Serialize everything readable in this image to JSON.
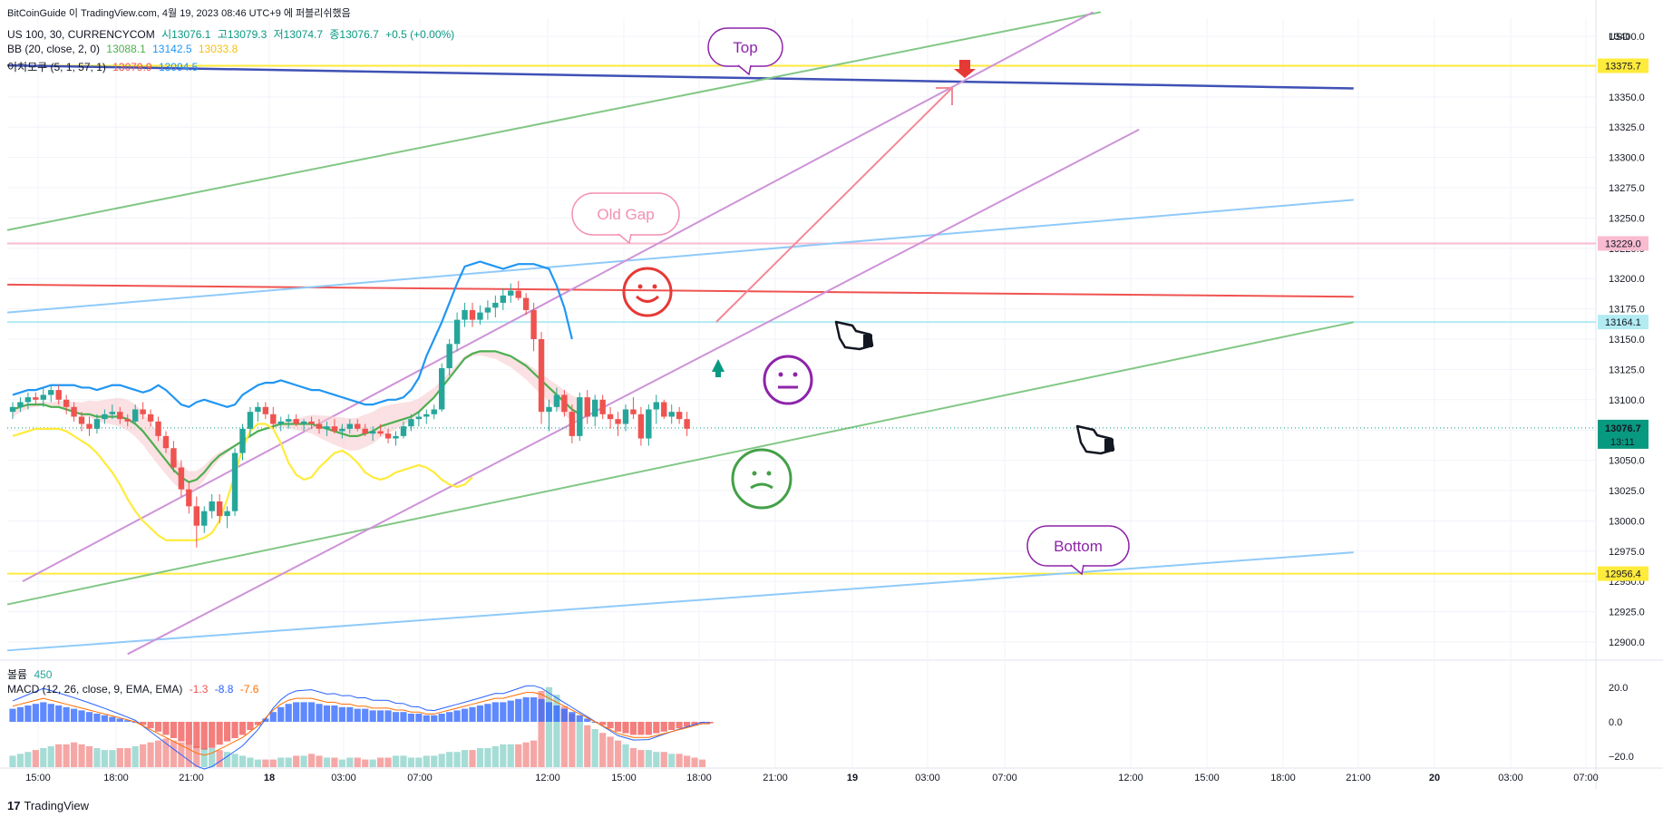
{
  "header": {
    "publisher": "BitCoinGuide 이 TradingView.com, 4월 19, 2023 08:46 UTC+9 에 퍼블리쉬했음",
    "symbol_line": "US 100, 30, CURRENCYCOM",
    "ohlc": {
      "open": "시13076.1",
      "high": "고13079.3",
      "low": "저13074.7",
      "close": "종13076.7",
      "change": "+0.5 (+0.00%)"
    },
    "bb_label": "BB (20, close, 2, 0)",
    "bb_values": {
      "basis": "13088.1",
      "upper": "13142.5",
      "lower": "13033.8"
    },
    "ichimoku_label": "이치모쿠 (5, 1, 57, 1)",
    "ichimoku_values": {
      "a": "13079.9",
      "b": "13094.5"
    },
    "volume_label": "볼륨",
    "volume_value": "450",
    "macd_label": "MACD (12, 26, close, 9, EMA, EMA)",
    "macd_values": {
      "hist": "-1.3",
      "macd": "-8.8",
      "signal": "-7.6"
    }
  },
  "footer": {
    "brand": "TradingView",
    "logo_glyph": "17"
  },
  "colors": {
    "up": "#26a69a",
    "down": "#ef5350",
    "bb_upper": "#2196f3",
    "bb_basis": "#4caf50",
    "bb_lower": "#ffeb3b",
    "level_yellow": "#ffeb3b",
    "level_pink": "#f8bbd0",
    "level_cyan": "#b2ebf2",
    "purple": "#ce93d8",
    "green_line": "#81c784",
    "blue_line": "#90caf9",
    "red_line": "#ef5350",
    "navy_line": "#3f51b5"
  },
  "annotations": {
    "top": "Top",
    "old_gap": "Old Gap",
    "bottom": "Bottom"
  },
  "chart_data": {
    "type": "candlestick",
    "currency": "USD",
    "ylim": [
      12885,
      13415
    ],
    "price_ticks": [
      12900,
      12925,
      12950,
      12975,
      13000,
      13025,
      13050,
      13075,
      13100,
      13125,
      13150,
      13175,
      13200,
      13225,
      13250,
      13275,
      13300,
      13325,
      13350,
      13375,
      13400
    ],
    "price_tick_labels": [
      "12900.0",
      "12925.0",
      "12950.0",
      "12975.0",
      "13000.0",
      "13025.0",
      "13050.0",
      "13075.0",
      "13100.0",
      "13125.0",
      "13150.0",
      "13175.0",
      "13200.0",
      "13225.0",
      "13250.0",
      "13275.0",
      "13300.0",
      "13325.0",
      "13350.0",
      "13375.0",
      "13400.0"
    ],
    "price_labels": [
      {
        "text": "13375.7",
        "value": 13375.7,
        "color": "#ffeb3b",
        "text_color": "#131722"
      },
      {
        "text": "13229.0",
        "value": 13229.0,
        "color": "#f8bbd0",
        "text_color": "#131722"
      },
      {
        "text": "13164.1",
        "value": 13164.1,
        "color": "#b2ebf2",
        "text_color": "#131722"
      },
      {
        "text": "12956.4",
        "value": 12956.4,
        "color": "#ffeb3b",
        "text_color": "#131722"
      }
    ],
    "last_price": {
      "text": "13076.7",
      "countdown": "13:11",
      "value": 13076.7
    },
    "x_ticks": [
      "15:00",
      "18:00",
      "21:00",
      "18",
      "03:00",
      "07:00",
      "12:00",
      "15:00",
      "18:00",
      "21:00",
      "19",
      "03:00",
      "07:00",
      "12:00",
      "15:00",
      "18:00",
      "21:00",
      "20",
      "03:00",
      "07:00"
    ],
    "x_ticks_bold": [
      "18",
      "19",
      "20"
    ],
    "macd_ticks": [
      "20.0",
      "0.0",
      "−20.0"
    ],
    "candles": [
      [
        13090,
        13098,
        13084,
        13094
      ],
      [
        13094,
        13102,
        13090,
        13098
      ],
      [
        13098,
        13106,
        13092,
        13102
      ],
      [
        13102,
        13106,
        13096,
        13100
      ],
      [
        13100,
        13110,
        13094,
        13104
      ],
      [
        13104,
        13112,
        13098,
        13108
      ],
      [
        13108,
        13112,
        13096,
        13100
      ],
      [
        13100,
        13104,
        13088,
        13094
      ],
      [
        13094,
        13098,
        13082,
        13086
      ],
      [
        13086,
        13090,
        13074,
        13080
      ],
      [
        13080,
        13086,
        13070,
        13076
      ],
      [
        13076,
        13088,
        13072,
        13084
      ],
      [
        13084,
        13092,
        13080,
        13088
      ],
      [
        13088,
        13096,
        13084,
        13090
      ],
      [
        13090,
        13094,
        13080,
        13084
      ],
      [
        13084,
        13088,
        13078,
        13082
      ],
      [
        13082,
        13096,
        13080,
        13092
      ],
      [
        13092,
        13098,
        13084,
        13088
      ],
      [
        13088,
        13092,
        13078,
        13082
      ],
      [
        13082,
        13086,
        13066,
        13070
      ],
      [
        13070,
        13074,
        13056,
        13060
      ],
      [
        13060,
        13066,
        13040,
        13044
      ],
      [
        13044,
        13050,
        13020,
        13026
      ],
      [
        13026,
        13032,
        13006,
        13012
      ],
      [
        13012,
        13020,
        12978,
        12996
      ],
      [
        12996,
        13012,
        12990,
        13008
      ],
      [
        13008,
        13022,
        13002,
        13016
      ],
      [
        13016,
        13022,
        12998,
        13004
      ],
      [
        13004,
        13012,
        12994,
        13008
      ],
      [
        13008,
        13060,
        13004,
        13056
      ],
      [
        13056,
        13080,
        13050,
        13076
      ],
      [
        13076,
        13094,
        13070,
        13090
      ],
      [
        13090,
        13098,
        13082,
        13094
      ],
      [
        13094,
        13098,
        13084,
        13088
      ],
      [
        13088,
        13094,
        13076,
        13080
      ],
      [
        13080,
        13086,
        13074,
        13082
      ],
      [
        13082,
        13088,
        13076,
        13084
      ],
      [
        13084,
        13088,
        13078,
        13080
      ],
      [
        13080,
        13084,
        13074,
        13082
      ],
      [
        13082,
        13086,
        13076,
        13080
      ],
      [
        13080,
        13084,
        13072,
        13076
      ],
      [
        13076,
        13082,
        13070,
        13078
      ],
      [
        13078,
        13084,
        13072,
        13074
      ],
      [
        13074,
        13080,
        13068,
        13076
      ],
      [
        13076,
        13084,
        13072,
        13080
      ],
      [
        13080,
        13084,
        13074,
        13076
      ],
      [
        13076,
        13080,
        13070,
        13072
      ],
      [
        13072,
        13078,
        13066,
        13074
      ],
      [
        13074,
        13080,
        13070,
        13072
      ],
      [
        13072,
        13076,
        13064,
        13068
      ],
      [
        13068,
        13074,
        13062,
        13070
      ],
      [
        13070,
        13082,
        13068,
        13078
      ],
      [
        13078,
        13088,
        13074,
        13084
      ],
      [
        13084,
        13090,
        13078,
        13086
      ],
      [
        13086,
        13092,
        13080,
        13088
      ],
      [
        13088,
        13096,
        13084,
        13092
      ],
      [
        13092,
        13130,
        13090,
        13126
      ],
      [
        13126,
        13150,
        13120,
        13146
      ],
      [
        13146,
        13172,
        13140,
        13166
      ],
      [
        13166,
        13180,
        13160,
        13174
      ],
      [
        13174,
        13180,
        13160,
        13166
      ],
      [
        13166,
        13178,
        13162,
        13172
      ],
      [
        13172,
        13182,
        13166,
        13176
      ],
      [
        13176,
        13186,
        13168,
        13180
      ],
      [
        13180,
        13192,
        13174,
        13186
      ],
      [
        13186,
        13196,
        13180,
        13190
      ],
      [
        13190,
        13198,
        13182,
        13184
      ],
      [
        13184,
        13188,
        13170,
        13174
      ],
      [
        13174,
        13180,
        13140,
        13150
      ],
      [
        13150,
        13156,
        13080,
        13090
      ],
      [
        13090,
        13100,
        13074,
        13094
      ],
      [
        13094,
        13110,
        13090,
        13104
      ],
      [
        13104,
        13108,
        13086,
        13090
      ],
      [
        13090,
        13096,
        13064,
        13070
      ],
      [
        13070,
        13106,
        13066,
        13102
      ],
      [
        13102,
        13108,
        13080,
        13086
      ],
      [
        13086,
        13104,
        13078,
        13100
      ],
      [
        13100,
        13104,
        13084,
        13088
      ],
      [
        13088,
        13094,
        13076,
        13084
      ],
      [
        13084,
        13090,
        13070,
        13080
      ],
      [
        13080,
        13096,
        13074,
        13092
      ],
      [
        13092,
        13102,
        13084,
        13088
      ],
      [
        13088,
        13094,
        13062,
        13068
      ],
      [
        13068,
        13096,
        13062,
        13092
      ],
      [
        13092,
        13104,
        13080,
        13098
      ],
      [
        13098,
        13100,
        13084,
        13086
      ],
      [
        13086,
        13096,
        13080,
        13090
      ],
      [
        13090,
        13094,
        13080,
        13084
      ],
      [
        13084,
        13090,
        13070,
        13076
      ]
    ],
    "bb_upper": [
      13104,
      13106,
      13108,
      13108,
      13110,
      13112,
      13112,
      13112,
      13112,
      13110,
      13110,
      13108,
      13110,
      13112,
      13112,
      13110,
      13108,
      13106,
      13108,
      13112,
      13108,
      13102,
      13096,
      13094,
      13098,
      13100,
      13098,
      13096,
      13094,
      13096,
      13104,
      13108,
      13112,
      13114,
      13114,
      13116,
      13114,
      13112,
      13110,
      13108,
      13108,
      13106,
      13104,
      13102,
      13100,
      13098,
      13096,
      13096,
      13098,
      13100,
      13100,
      13102,
      13108,
      13118,
      13136,
      13150,
      13164,
      13180,
      13196,
      13210,
      13212,
      13214,
      13212,
      13210,
      13208,
      13210,
      13212,
      13212,
      13212,
      13210,
      13208,
      13194,
      13176,
      13150
    ],
    "bb_basis": [
      13092,
      13094,
      13096,
      13096,
      13096,
      13094,
      13094,
      13092,
      13090,
      13088,
      13088,
      13086,
      13086,
      13086,
      13086,
      13084,
      13080,
      13074,
      13066,
      13058,
      13050,
      13042,
      13036,
      13032,
      13034,
      13040,
      13048,
      13054,
      13058,
      13062,
      13066,
      13070,
      13074,
      13076,
      13078,
      13080,
      13080,
      13080,
      13080,
      13080,
      13078,
      13076,
      13074,
      13072,
      13070,
      13070,
      13072,
      13074,
      13078,
      13080,
      13082,
      13084,
      13086,
      13090,
      13096,
      13102,
      13110,
      13118,
      13126,
      13134,
      13138,
      13140,
      13140,
      13140,
      13138,
      13136,
      13132,
      13128,
      13122,
      13116,
      13110,
      13104,
      13098,
      13092,
      13088
    ],
    "bb_lower": [
      13070,
      13072,
      13074,
      13076,
      13076,
      13076,
      13076,
      13074,
      13070,
      13066,
      13062,
      13056,
      13048,
      13040,
      13030,
      13018,
      13008,
      13000,
      12994,
      12988,
      12984,
      12984,
      12984,
      12984,
      12984,
      12986,
      12990,
      13000,
      13018,
      13038,
      13060,
      13074,
      13080,
      13080,
      13076,
      13064,
      13048,
      13038,
      13034,
      13036,
      13044,
      13050,
      13056,
      13058,
      13054,
      13048,
      13040,
      13036,
      13034,
      13036,
      13040,
      13042,
      13044,
      13046,
      13044,
      13040,
      13034,
      13030,
      13028,
      13030,
      13036
    ],
    "macd_hist": [
      8,
      9,
      10,
      11,
      12,
      11,
      10,
      9,
      8,
      7,
      6,
      5,
      4,
      3,
      2,
      1,
      0,
      -2,
      -4,
      -6,
      -8,
      -10,
      -12,
      -14,
      -16,
      -17,
      -16,
      -14,
      -12,
      -10,
      -8,
      -5,
      -2,
      2,
      6,
      9,
      11,
      12,
      12,
      12,
      11,
      10,
      10,
      9,
      9,
      8,
      8,
      7,
      7,
      7,
      6,
      6,
      5,
      5,
      4,
      4,
      5,
      6,
      7,
      8,
      9,
      10,
      11,
      12,
      12,
      13,
      14,
      15,
      15,
      14,
      12,
      10,
      8,
      6,
      4,
      2,
      0,
      -2,
      -4,
      -6,
      -7,
      -8,
      -8,
      -8,
      -7,
      -6,
      -5,
      -4,
      -3,
      -2,
      -1,
      -1
    ],
    "volume": [
      6,
      7,
      8,
      9,
      10,
      11,
      12,
      12,
      13,
      12,
      11,
      10,
      9,
      9,
      10,
      10,
      11,
      12,
      13,
      14,
      15,
      14,
      13,
      12,
      11,
      10,
      10,
      9,
      8,
      7,
      6,
      5,
      4,
      4,
      4,
      5,
      5,
      6,
      6,
      7,
      6,
      5,
      5,
      4,
      5,
      5,
      4,
      4,
      5,
      5,
      6,
      6,
      5,
      5,
      6,
      6,
      7,
      8,
      8,
      9,
      9,
      10,
      10,
      11,
      12,
      12,
      12,
      13,
      14,
      40,
      42,
      38,
      32,
      28,
      24,
      22,
      20,
      18,
      16,
      14,
      12,
      10,
      9,
      9,
      8,
      8,
      7,
      7,
      6,
      5,
      4
    ]
  }
}
